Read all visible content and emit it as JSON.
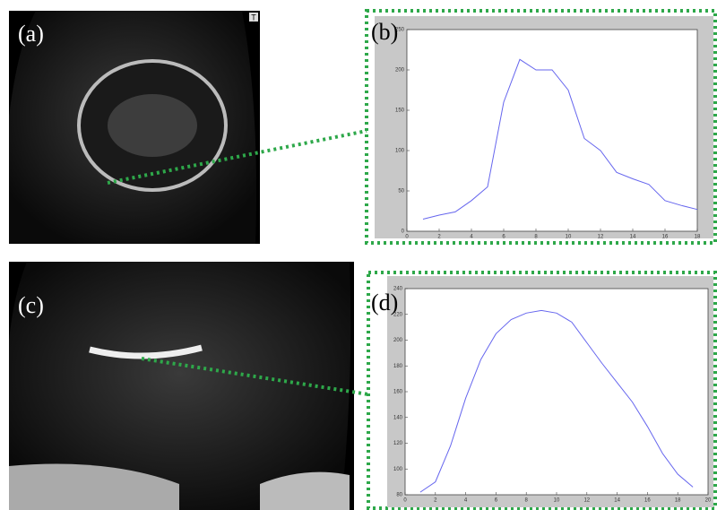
{
  "image_labels": [
    "(a)",
    "(c)"
  ],
  "image_marker": "T",
  "chart_data": [
    {
      "type": "line",
      "title": "(b)",
      "color": "#6666ee",
      "x": [
        1,
        2,
        3,
        4,
        5,
        6,
        7,
        8,
        9,
        10,
        11,
        12,
        13,
        14,
        15,
        16,
        17,
        18
      ],
      "values": [
        15,
        20,
        24,
        38,
        55,
        160,
        213,
        200,
        200,
        175,
        115,
        100,
        73,
        65,
        58,
        38,
        32,
        27
      ],
      "xlim": [
        0,
        18
      ],
      "ylim": [
        0,
        250
      ],
      "xticks": [
        0,
        2,
        4,
        6,
        8,
        10,
        12,
        14,
        16,
        18
      ],
      "yticks": [
        0,
        50,
        100,
        150,
        200,
        250
      ]
    },
    {
      "type": "line",
      "title": "(d)",
      "color": "#6666ee",
      "x": [
        1,
        2,
        3,
        4,
        5,
        6,
        7,
        8,
        9,
        10,
        11,
        12,
        13,
        14,
        15,
        16,
        17,
        18,
        19
      ],
      "values": [
        82,
        90,
        118,
        155,
        185,
        205,
        216,
        221,
        223,
        221,
        214,
        198,
        182,
        167,
        152,
        133,
        112,
        96,
        86
      ],
      "xlim": [
        0,
        20
      ],
      "ylim": [
        80,
        240
      ],
      "xticks": [
        0,
        2,
        4,
        6,
        8,
        10,
        12,
        14,
        16,
        18,
        20
      ],
      "yticks": [
        80,
        100,
        120,
        140,
        160,
        180,
        200,
        220,
        240
      ]
    }
  ]
}
